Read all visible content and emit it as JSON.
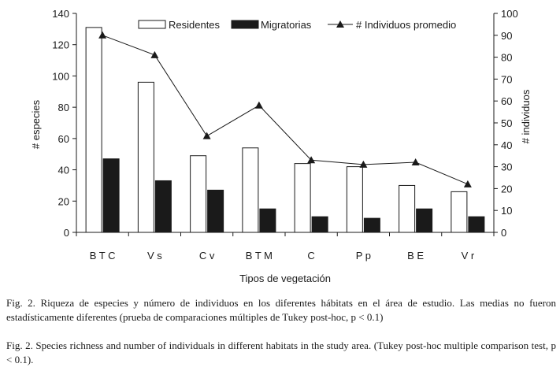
{
  "chart_data": {
    "type": "bar",
    "categories": [
      "B T C",
      "V s",
      "C v",
      "B T M",
      "C",
      "P p",
      "B E",
      "V r"
    ],
    "series": [
      {
        "name": "Residentes",
        "type": "bar",
        "axis": "left",
        "fill": "#ffffff",
        "values": [
          131,
          96,
          49,
          54,
          44,
          42,
          30,
          26
        ]
      },
      {
        "name": "Migratorias",
        "type": "bar",
        "axis": "left",
        "fill": "#1a1a1a",
        "values": [
          47,
          33,
          27,
          15,
          10,
          9,
          15,
          10
        ]
      },
      {
        "name": "# Individuos promedio",
        "type": "line",
        "axis": "right",
        "marker": "triangle",
        "values": [
          90,
          81,
          44,
          58,
          33,
          31,
          32,
          22
        ]
      }
    ],
    "xlabel": "Tipos de vegetación",
    "ylabel": "# especies",
    "y2label": "# individuos",
    "ylim": [
      0,
      140
    ],
    "yticks": [
      0,
      20,
      40,
      60,
      80,
      100,
      120,
      140
    ],
    "y2lim": [
      0,
      100
    ],
    "y2ticks": [
      0,
      10,
      20,
      30,
      40,
      50,
      60,
      70,
      80,
      90,
      100
    ],
    "grid": false,
    "legend_position": "top"
  },
  "captions": {
    "spanish": "Fig. 2. Riqueza de especies y número de individuos en los diferentes hábitats en el área de estudio. Las medias no fueron estadísticamente diferentes (prueba de comparaciones múltiples de Tukey post-hoc, p < 0.1)",
    "english": "Fig. 2. Species richness and number of individuals in different habitats in the study area. (Tukey post-hoc multiple comparison test, p < 0.1)."
  }
}
